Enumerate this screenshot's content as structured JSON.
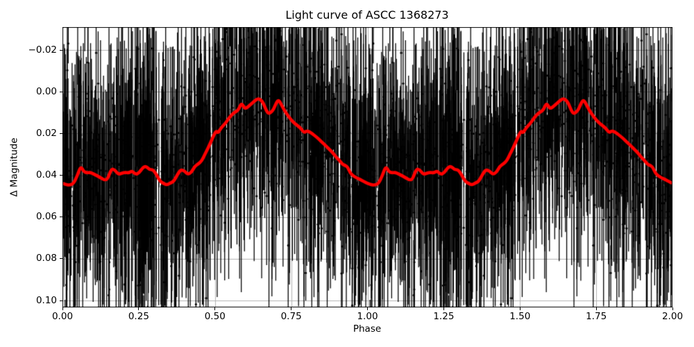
{
  "chart_data": {
    "type": "scatter",
    "title": "Light curve of ASCC 1368273",
    "xlabel": "Phase",
    "ylabel": "Δ Magnitude",
    "grid": true,
    "legend": false,
    "background": "#ffffff",
    "axes": {
      "xlim": [
        0.0,
        2.0
      ],
      "ylim_top": -0.031,
      "ylim_bottom": 0.1033,
      "y_inverted": true,
      "xtick_values": [
        0.0,
        0.25,
        0.5,
        0.75,
        1.0,
        1.25,
        1.5,
        1.75,
        2.0
      ],
      "xtick_labels": [
        "0.00",
        "0.25",
        "0.50",
        "0.75",
        "1.00",
        "1.25",
        "1.50",
        "1.75",
        "2.00"
      ],
      "ytick_values": [
        -0.02,
        0.0,
        0.02,
        0.04,
        0.06,
        0.08,
        0.1
      ],
      "ytick_labels": [
        "−0.02",
        "0.00",
        "0.02",
        "0.04",
        "0.06",
        "0.08",
        "0.10"
      ],
      "grid_color": "#b0b0b0",
      "spine_color": "#000000"
    },
    "series": [
      {
        "name": "phase_folded_observations_with_errorbars",
        "type": "errorbar_scatter",
        "color": "#000000",
        "marker": "point",
        "marker_radius": 1.6,
        "bar_width": 1.3,
        "phase_cycles": 2,
        "n_points_per_cycle": 1150,
        "noise_sigma": 0.017,
        "outlier_sigma": 0.04,
        "outlier_frac": 0.2,
        "err_half_mean": 0.022,
        "err_half_sigma": 0.014,
        "err_half_min": 0.007,
        "big_err_frac": 0.04,
        "big_err_scale": 1.9,
        "seed": 20240817
      },
      {
        "name": "smoothed_light_curve",
        "type": "line",
        "color": "#ff0000",
        "linewidth": 4.6,
        "cycle_phase": [
          0.0,
          0.012,
          0.024,
          0.036,
          0.048,
          0.06,
          0.07,
          0.08,
          0.091,
          0.103,
          0.114,
          0.126,
          0.138,
          0.148,
          0.16,
          0.171,
          0.183,
          0.194,
          0.205,
          0.217,
          0.228,
          0.24,
          0.251,
          0.263,
          0.274,
          0.285,
          0.297,
          0.308,
          0.32,
          0.331,
          0.342,
          0.353,
          0.365,
          0.377,
          0.388,
          0.4,
          0.411,
          0.423,
          0.434,
          0.445,
          0.457,
          0.468,
          0.48,
          0.491,
          0.503,
          0.51,
          0.517,
          0.526,
          0.535,
          0.545,
          0.556,
          0.566,
          0.577,
          0.587,
          0.597,
          0.606,
          0.617,
          0.63,
          0.641,
          0.65,
          0.659,
          0.668,
          0.676,
          0.684,
          0.692,
          0.701,
          0.709,
          0.718,
          0.727,
          0.738,
          0.749,
          0.76,
          0.772,
          0.783,
          0.792,
          0.8,
          0.808,
          0.818,
          0.829,
          0.84,
          0.852,
          0.863,
          0.874,
          0.886,
          0.897,
          0.909,
          0.918,
          0.926,
          0.935,
          0.944,
          0.953,
          0.965,
          0.977,
          0.988,
          1.0
        ],
        "cycle_mag": [
          0.0438,
          0.0445,
          0.0447,
          0.044,
          0.0404,
          0.0355,
          0.0383,
          0.0388,
          0.0386,
          0.0394,
          0.0403,
          0.0412,
          0.0423,
          0.0419,
          0.0369,
          0.0373,
          0.0396,
          0.039,
          0.0386,
          0.0389,
          0.0379,
          0.0396,
          0.0389,
          0.0363,
          0.0356,
          0.0373,
          0.0373,
          0.0396,
          0.0429,
          0.0439,
          0.0446,
          0.0438,
          0.0429,
          0.0396,
          0.0373,
          0.0379,
          0.0396,
          0.0386,
          0.0356,
          0.0346,
          0.033,
          0.0296,
          0.0262,
          0.0225,
          0.0187,
          0.0197,
          0.018,
          0.0163,
          0.015,
          0.0128,
          0.0108,
          0.0097,
          0.0087,
          0.0052,
          0.008,
          0.0076,
          0.006,
          0.0044,
          0.0032,
          0.0038,
          0.0055,
          0.009,
          0.0105,
          0.0098,
          0.0085,
          0.0052,
          0.0038,
          0.0062,
          0.0088,
          0.0112,
          0.0133,
          0.015,
          0.0163,
          0.0178,
          0.0196,
          0.0188,
          0.019,
          0.02,
          0.0212,
          0.0226,
          0.0243,
          0.0258,
          0.0274,
          0.0292,
          0.0312,
          0.033,
          0.0348,
          0.0352,
          0.036,
          0.039,
          0.0402,
          0.0413,
          0.0421,
          0.043,
          0.0438
        ]
      }
    ]
  }
}
